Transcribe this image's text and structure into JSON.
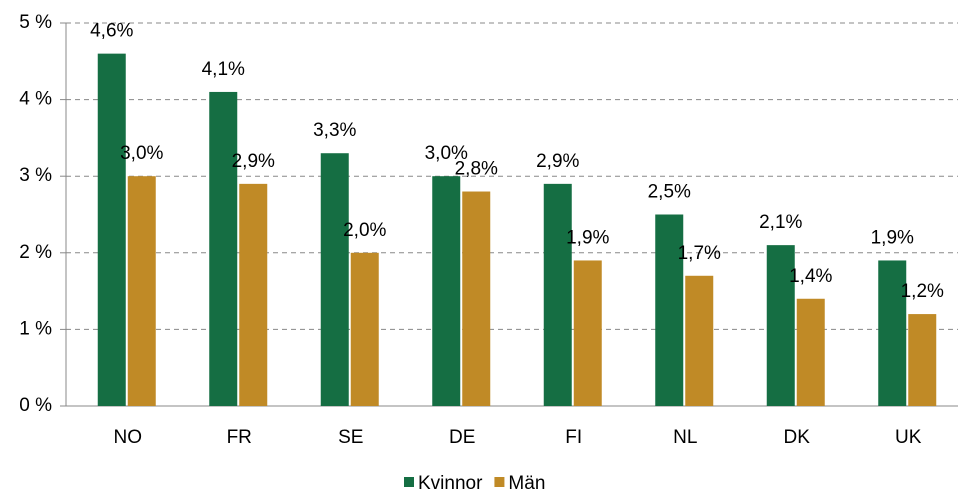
{
  "chart_data": {
    "type": "bar",
    "categories": [
      "NO",
      "FR",
      "SE",
      "DE",
      "FI",
      "NL",
      "DK",
      "UK"
    ],
    "series": [
      {
        "name": "Kvinnor",
        "color": "#156e43",
        "values": [
          4.6,
          4.1,
          3.3,
          3.0,
          2.9,
          2.5,
          2.1,
          1.9
        ],
        "value_labels": [
          "4,6%",
          "4,1%",
          "3,3%",
          "3,0%",
          "2,9%",
          "2,5%",
          "2,1%",
          "1,9%"
        ]
      },
      {
        "name": "Män",
        "color": "#c08a26",
        "values": [
          3.0,
          2.9,
          2.0,
          2.8,
          1.9,
          1.7,
          1.4,
          1.2
        ],
        "value_labels": [
          "3,0%",
          "2,9%",
          "2,0%",
          "2,8%",
          "1,9%",
          "1,7%",
          "1,4%",
          "1,2%"
        ]
      }
    ],
    "ylim": [
      0,
      5
    ],
    "yticks": [
      {
        "value": 0,
        "label": "0 %"
      },
      {
        "value": 1,
        "label": "1 %"
      },
      {
        "value": 2,
        "label": "2 %"
      },
      {
        "value": 3,
        "label": "3 %"
      },
      {
        "value": 4,
        "label": "4 %"
      },
      {
        "value": 5,
        "label": "5 %"
      }
    ],
    "grid": true,
    "legend": "bottom"
  }
}
